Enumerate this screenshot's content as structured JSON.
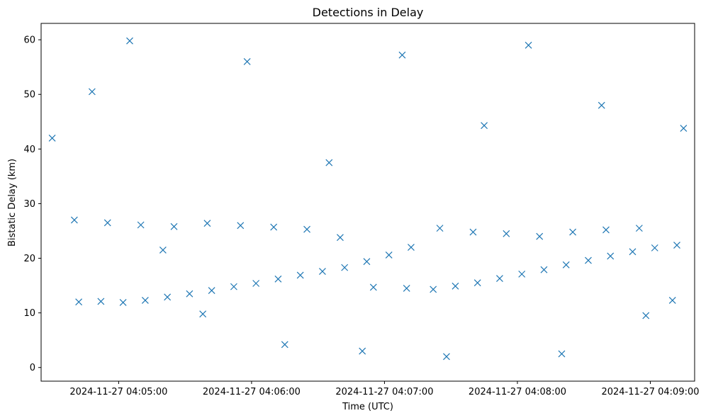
{
  "chart_data": {
    "type": "scatter",
    "title": "Detections in Delay",
    "xlabel": "Time (UTC)",
    "ylabel": "Bistatic Delay (km)",
    "marker": "x",
    "color": "#1f77b4",
    "xlim": [
      "2024-11-27 04:04:25",
      "2024-11-27 04:09:20"
    ],
    "ylim": [
      -2.5,
      63
    ],
    "x_ticks": [
      "2024-11-27 04:05:00",
      "2024-11-27 04:06:00",
      "2024-11-27 04:07:00",
      "2024-11-27 04:08:00",
      "2024-11-27 04:09:00"
    ],
    "y_ticks": [
      0,
      10,
      20,
      30,
      40,
      50,
      60
    ],
    "grid": false,
    "series": [
      {
        "x": [
          "2024-11-27 04:04:42",
          "2024-11-27 04:04:52",
          "2024-11-27 04:05:02",
          "2024-11-27 04:05:12",
          "2024-11-27 04:05:22",
          "2024-11-27 04:05:32",
          "2024-11-27 04:05:42",
          "2024-11-27 04:05:52",
          "2024-11-27 04:06:02",
          "2024-11-27 04:06:12",
          "2024-11-27 04:06:22",
          "2024-11-27 04:06:32",
          "2024-11-27 04:06:42",
          "2024-11-27 04:06:52",
          "2024-11-27 04:07:02",
          "2024-11-27 04:07:12",
          "2024-11-27 04:07:22",
          "2024-11-27 04:07:32",
          "2024-11-27 04:07:42",
          "2024-11-27 04:07:52",
          "2024-11-27 04:08:02",
          "2024-11-27 04:08:12",
          "2024-11-27 04:08:22",
          "2024-11-27 04:08:32",
          "2024-11-27 04:08:42",
          "2024-11-27 04:08:52",
          "2024-11-27 04:09:02",
          "2024-11-27 04:09:12",
          "2024-11-27 04:04:40",
          "2024-11-27 04:04:55",
          "2024-11-27 04:05:10",
          "2024-11-27 04:05:25",
          "2024-11-27 04:05:40",
          "2024-11-27 04:05:55",
          "2024-11-27 04:06:10",
          "2024-11-27 04:06:25",
          "2024-11-27 04:06:40",
          "2024-11-27 04:06:55",
          "2024-11-27 04:07:10",
          "2024-11-27 04:07:25",
          "2024-11-27 04:07:40",
          "2024-11-27 04:07:55",
          "2024-11-27 04:08:10",
          "2024-11-27 04:08:25",
          "2024-11-27 04:08:40",
          "2024-11-27 04:08:55",
          "2024-11-27 04:09:10",
          "2024-11-27 04:04:30",
          "2024-11-27 04:04:48",
          "2024-11-27 04:05:05",
          "2024-11-27 04:05:20",
          "2024-11-27 04:05:38",
          "2024-11-27 04:05:58",
          "2024-11-27 04:06:15",
          "2024-11-27 04:06:35",
          "2024-11-27 04:06:50",
          "2024-11-27 04:07:08",
          "2024-11-27 04:07:28",
          "2024-11-27 04:07:45",
          "2024-11-27 04:08:05",
          "2024-11-27 04:08:20",
          "2024-11-27 04:08:38",
          "2024-11-27 04:08:58",
          "2024-11-27 04:09:15"
        ],
        "y": [
          12.0,
          12.1,
          11.9,
          12.3,
          12.9,
          13.5,
          14.1,
          14.8,
          15.4,
          16.2,
          16.9,
          17.6,
          18.3,
          19.4,
          20.6,
          22.0,
          14.3,
          14.9,
          15.5,
          16.3,
          17.1,
          17.9,
          18.8,
          19.6,
          20.4,
          21.2,
          21.9,
          22.4,
          27.0,
          26.5,
          26.1,
          25.8,
          26.4,
          26.0,
          25.7,
          25.3,
          23.8,
          14.7,
          14.5,
          25.5,
          24.8,
          24.5,
          24.0,
          24.8,
          25.2,
          25.5,
          12.3,
          42.0,
          50.5,
          59.8,
          21.5,
          9.8,
          56.0,
          4.2,
          37.5,
          3.0,
          57.2,
          2.0,
          44.3,
          59.0,
          2.5,
          48.0,
          9.5,
          43.8
        ]
      }
    ]
  }
}
